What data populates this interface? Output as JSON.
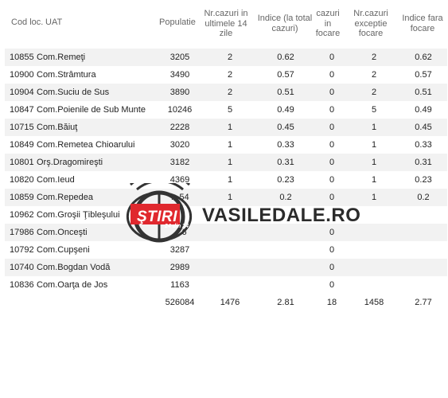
{
  "headers": {
    "code": "Cod loc.",
    "uat": "UAT",
    "pop": "Populatie",
    "cases_l1": "Nr.cazuri in",
    "cases_l2": "ultimele 14",
    "cases_l3": "zile",
    "idx_l1": "Indice (la total",
    "idx_l2": "cazuri)",
    "cf_l1": "cazuri",
    "cf_l2": "in",
    "cf_l3": "focare",
    "nce_l1": "Nr.cazuri",
    "nce_l2": "exceptie",
    "nce_l3": "focare",
    "ifc_l1": "Indice fara",
    "ifc_l2": "focare"
  },
  "rows": [
    {
      "code": "10855",
      "uat": "Com.Remeţi",
      "pop": "3205",
      "cases": "2",
      "idx": "0.62",
      "cf": "0",
      "nce": "2",
      "ifc": "0.62"
    },
    {
      "code": "10900",
      "uat": "Com.Strâmtura",
      "pop": "3490",
      "cases": "2",
      "idx": "0.57",
      "cf": "0",
      "nce": "2",
      "ifc": "0.57"
    },
    {
      "code": "10904",
      "uat": "Com.Suciu de Sus",
      "pop": "3890",
      "cases": "2",
      "idx": "0.51",
      "cf": "0",
      "nce": "2",
      "ifc": "0.51"
    },
    {
      "code": "10847",
      "uat": "Com.Poienile de Sub Munte",
      "pop": "10246",
      "cases": "5",
      "idx": "0.49",
      "cf": "0",
      "nce": "5",
      "ifc": "0.49"
    },
    {
      "code": "10715",
      "uat": "Com.Băiuţ",
      "pop": "2228",
      "cases": "1",
      "idx": "0.45",
      "cf": "0",
      "nce": "1",
      "ifc": "0.45"
    },
    {
      "code": "10849",
      "uat": "Com.Remetea Chioarului",
      "pop": "3020",
      "cases": "1",
      "idx": "0.33",
      "cf": "0",
      "nce": "1",
      "ifc": "0.33"
    },
    {
      "code": "10801",
      "uat": "Orş.Dragomireşti",
      "pop": "3182",
      "cases": "1",
      "idx": "0.31",
      "cf": "0",
      "nce": "1",
      "ifc": "0.31"
    },
    {
      "code": "10820",
      "uat": "Com.Ieud",
      "pop": "4369",
      "cases": "1",
      "idx": "0.23",
      "cf": "0",
      "nce": "1",
      "ifc": "0.23"
    },
    {
      "code": "10859",
      "uat": "Com.Repedea",
      "pop": "…54",
      "cases": "1",
      "idx": "0.2",
      "cf": "0",
      "nce": "1",
      "ifc": "0.2"
    },
    {
      "code": "10962",
      "uat": "Com.Groşii Ţibleşului",
      "pop": "",
      "cases": "",
      "idx": "",
      "cf": "",
      "nce": "",
      "ifc": ""
    },
    {
      "code": "17986",
      "uat": "Com.Onceşti",
      "pop": "…6",
      "cases": "",
      "idx": "",
      "cf": "0",
      "nce": "",
      "ifc": ""
    },
    {
      "code": "10792",
      "uat": "Com.Cupşeni",
      "pop": "3287",
      "cases": "",
      "idx": "",
      "cf": "0",
      "nce": "",
      "ifc": ""
    },
    {
      "code": "10740",
      "uat": "Com.Bogdan Vodă",
      "pop": "2989",
      "cases": "",
      "idx": "",
      "cf": "0",
      "nce": "",
      "ifc": ""
    },
    {
      "code": "10836",
      "uat": "Com.Oarţa de Jos",
      "pop": "1163",
      "cases": "",
      "idx": "",
      "cf": "0",
      "nce": "",
      "ifc": ""
    },
    {
      "code": "",
      "uat": "",
      "pop": "526084",
      "cases": "1476",
      "idx": "2.81",
      "cf": "18",
      "nce": "1458",
      "ifc": "2.77"
    }
  ],
  "watermark": {
    "brand": "VASILEDALE.RO",
    "badge": "ŞTIRI",
    "badge_sub": "24 din 24",
    "badge_color": "#e0282e"
  }
}
